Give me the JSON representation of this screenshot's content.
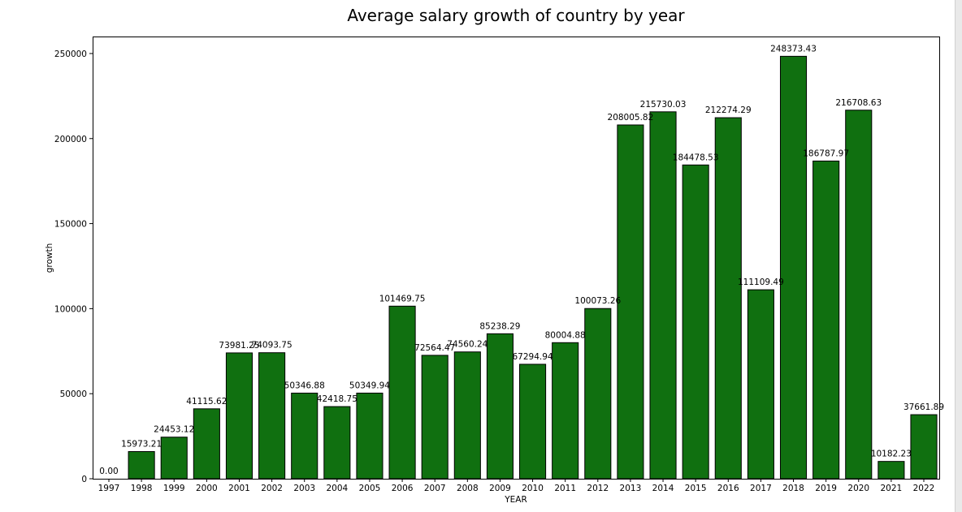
{
  "chart_data": {
    "type": "bar",
    "title": "Average salary growth of country by year",
    "xlabel": "YEAR",
    "ylabel": "growth",
    "ylim": [
      0,
      260000
    ],
    "yticks": [
      0,
      50000,
      100000,
      150000,
      200000,
      250000
    ],
    "bar_color": "#107010",
    "bar_edge_color": "#000000",
    "categories": [
      "1997",
      "1998",
      "1999",
      "2000",
      "2001",
      "2002",
      "2003",
      "2004",
      "2005",
      "2006",
      "2007",
      "2008",
      "2009",
      "2010",
      "2011",
      "2012",
      "2013",
      "2014",
      "2015",
      "2016",
      "2017",
      "2018",
      "2019",
      "2020",
      "2021",
      "2022"
    ],
    "values": [
      0.0,
      15973.21,
      24453.12,
      41115.62,
      73981.25,
      74093.75,
      50346.88,
      42418.75,
      50349.94,
      101469.75,
      72564.47,
      74560.24,
      85238.29,
      67294.94,
      80004.88,
      100073.26,
      208005.82,
      215730.03,
      184478.53,
      212274.29,
      111109.49,
      248373.43,
      186787.97,
      216708.63,
      10182.23,
      37661.89
    ],
    "value_labels": [
      "0.00",
      "15973.21",
      "24453.12",
      "41115.62",
      "73981.25",
      "74093.75",
      "50346.88",
      "42418.75",
      "50349.94",
      "101469.75",
      "72564.47",
      "74560.24",
      "85238.29",
      "67294.94",
      "80004.88",
      "100073.26",
      "208005.82",
      "215730.03",
      "184478.53",
      "212274.29",
      "111109.49",
      "248373.43",
      "186787.97",
      "216708.63",
      "10182.23",
      "37661.89"
    ],
    "grid": false,
    "legend": "none"
  }
}
